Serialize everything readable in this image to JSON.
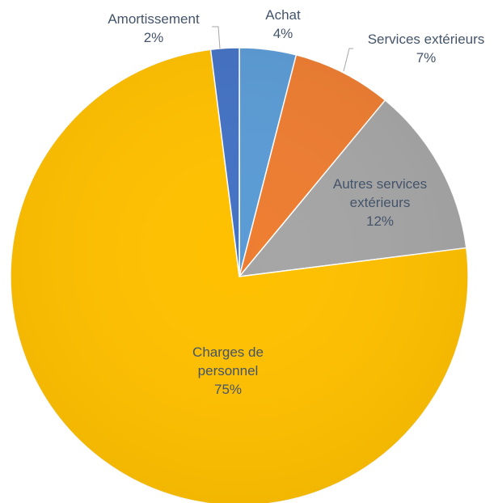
{
  "chart_data": {
    "type": "pie",
    "start_angle_deg": 0,
    "direction": "clockwise",
    "slices": [
      {
        "name": "Achat",
        "value": 4,
        "label": "4%",
        "color": "#5b9bd5"
      },
      {
        "name": "Services extérieurs",
        "value": 7,
        "label": "7%",
        "color": "#ed7d31"
      },
      {
        "name": "Autres services extérieurs",
        "value": 12,
        "label": "12%",
        "color": "#a5a5a5"
      },
      {
        "name": "Charges de personnel",
        "value": 75,
        "label": "75%",
        "color": "#ffc000"
      },
      {
        "name": "Amortissement",
        "value": 2,
        "label": "2%",
        "color": "#4472c4"
      }
    ],
    "label_color": "#44546a",
    "leader_line_color": "#a6a6a6",
    "legend": "none"
  }
}
